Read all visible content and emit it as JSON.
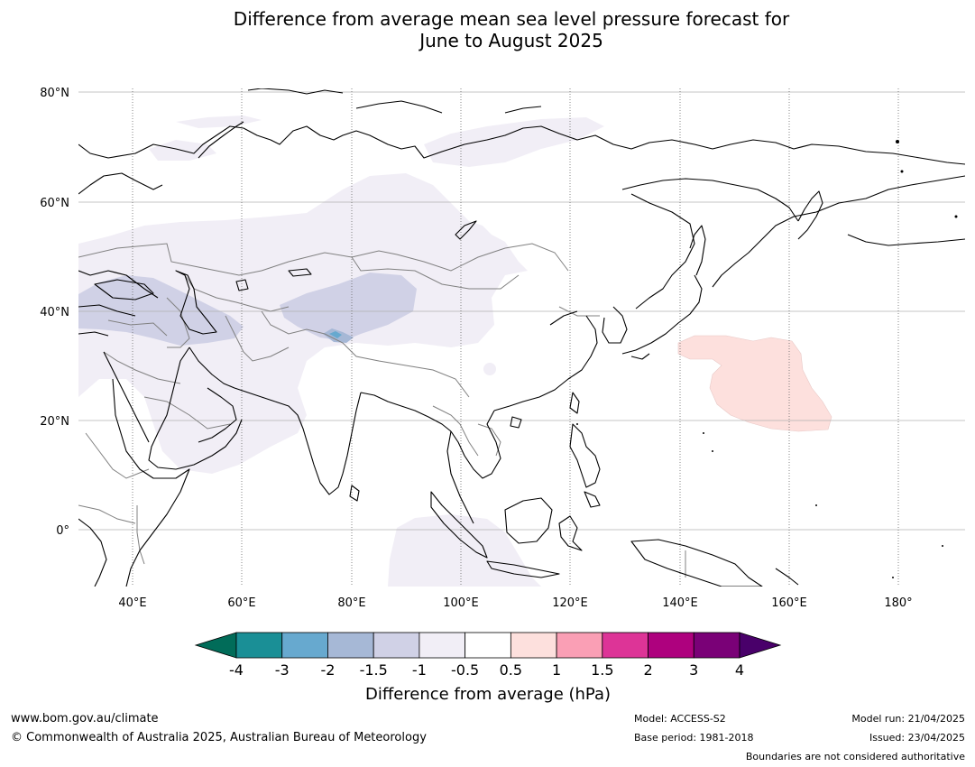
{
  "title": {
    "line1": "Difference from average mean sea level pressure forecast for",
    "line2": "June to August 2025"
  },
  "map": {
    "lat_labels": [
      "80°N",
      "60°N",
      "40°N",
      "20°N",
      "0°"
    ],
    "lon_labels": [
      "40°E",
      "60°E",
      "80°E",
      "100°E",
      "120°E",
      "140°E",
      "160°E",
      "180°"
    ],
    "coastline_color": "#000000",
    "border_color": "#808080",
    "gridline_color": "#b0b0b0"
  },
  "colorbar": {
    "ticks": [
      "-4",
      "-3",
      "-2",
      "-1.5",
      "-1",
      "-0.5",
      "0.5",
      "1",
      "1.5",
      "2",
      "3",
      "4"
    ],
    "colors": [
      "#1a8f96",
      "#67a9cf",
      "#a6b8d6",
      "#d0d1e6",
      "#f1eef6",
      "#ffffff",
      "#fde0dd",
      "#fa9fb5",
      "#dd3497",
      "#ae017e",
      "#7a0177"
    ],
    "low_extend_color": "#016c59",
    "high_extend_color": "#49006a",
    "label": "Difference from average (hPa)"
  },
  "footer": {
    "url": "www.bom.gov.au/climate",
    "copyright": "© Commonwealth of Australia 2025, Australian Bureau of Meteorology",
    "model": "Model: ACCESS-S2",
    "base_period": "Base period: 1981-2018",
    "model_run": "Model run: 21/04/2025",
    "issued": "Issued: 23/04/2025",
    "disclaimer": "Boundaries are not considered authoritative"
  }
}
